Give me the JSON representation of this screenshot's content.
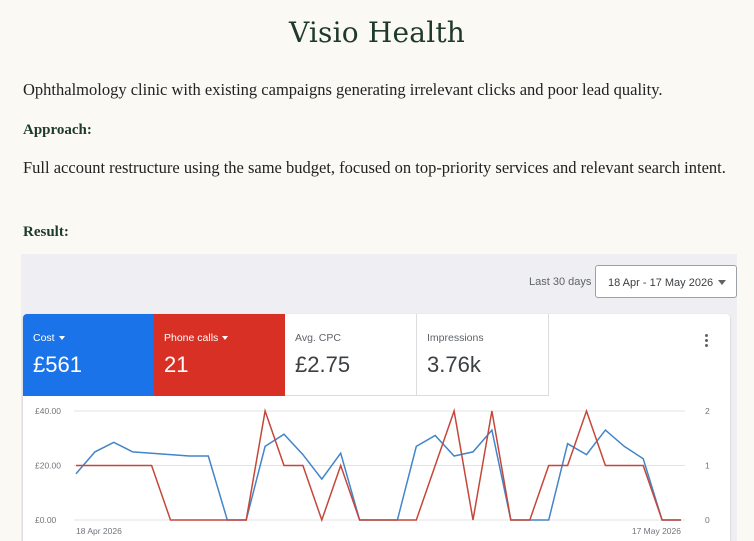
{
  "heading": "Visio Health",
  "intro": "Ophthalmology clinic with existing campaigns generating irrelevant clicks and poor lead quality.",
  "approach_label": "Approach:",
  "approach_text": "Full account restructure using the same budget, focused on top-priority services and relevant search intent.",
  "result_label": "Result:",
  "dashboard": {
    "period_label": "Last 30 days",
    "date_range": "18 Apr - 17 May 2026",
    "metrics": [
      {
        "label": "Cost",
        "value": "£561",
        "color": "#1a73e8"
      },
      {
        "label": "Phone calls",
        "value": "21",
        "color": "#d93025"
      },
      {
        "label": "Avg. CPC",
        "value": "£2.75"
      },
      {
        "label": "Impressions",
        "value": "3.76k"
      }
    ],
    "more_icon": "more-vert-icon"
  },
  "chart_data": {
    "type": "line",
    "x_start": "18 Apr 2026",
    "x_end": "17 May 2026",
    "y_left_ticks": [
      "£0.00",
      "£20.00",
      "£40.00"
    ],
    "y_right_ticks": [
      "0",
      "1",
      "2"
    ],
    "ylim_left": [
      0,
      40
    ],
    "ylim_right": [
      0,
      2
    ],
    "grid": true,
    "series": [
      {
        "name": "Cost",
        "axis": "left",
        "color": "#4285c9",
        "values": [
          17,
          25,
          28.5,
          25,
          24.5,
          24,
          23.5,
          23.5,
          0,
          0,
          27,
          31.5,
          24,
          15,
          24.5,
          0,
          0,
          0,
          27,
          31,
          23.5,
          25,
          33,
          0,
          0,
          0,
          28,
          24,
          33,
          27,
          22.5,
          0,
          0
        ]
      },
      {
        "name": "Phone calls",
        "axis": "right",
        "color": "#c5473a",
        "values": [
          1,
          1,
          1,
          1,
          1,
          0,
          0,
          0,
          0,
          0,
          2,
          1,
          1,
          0,
          1,
          0,
          0,
          0,
          0,
          1,
          2,
          0,
          2,
          0,
          0,
          1,
          1,
          2,
          1,
          1,
          1,
          0,
          0
        ]
      }
    ]
  }
}
